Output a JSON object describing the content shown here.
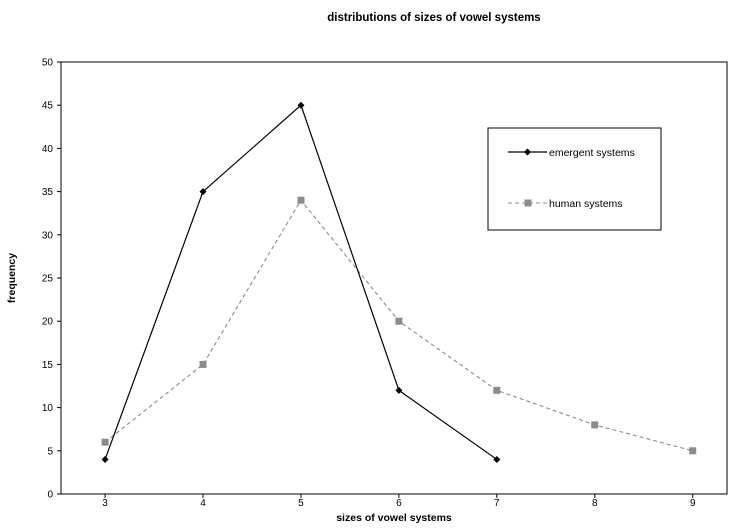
{
  "chart_data": {
    "type": "line",
    "title": "distributions of sizes of vowel systems",
    "xlabel": "sizes of vowel systems",
    "ylabel": "frequency",
    "x": [
      3,
      4,
      5,
      6,
      7,
      8,
      9
    ],
    "xlim": [
      2.55,
      9.35
    ],
    "ylim": [
      0,
      50
    ],
    "yticks": [
      0,
      5,
      10,
      15,
      20,
      25,
      30,
      35,
      40,
      45,
      50
    ],
    "grid": false,
    "legend_position": "right",
    "series": [
      {
        "name": "emergent systems",
        "x": [
          3,
          4,
          5,
          6,
          7
        ],
        "values": [
          4,
          35,
          45,
          12,
          4
        ],
        "color": "#000000",
        "line_style": "solid",
        "marker": "diamond"
      },
      {
        "name": "human systems",
        "x": [
          3,
          4,
          5,
          6,
          7,
          8,
          9
        ],
        "values": [
          6,
          15,
          34,
          20,
          12,
          8,
          5
        ],
        "color": "#8c8c8c",
        "line_style": "dashed",
        "marker": "square"
      }
    ]
  }
}
